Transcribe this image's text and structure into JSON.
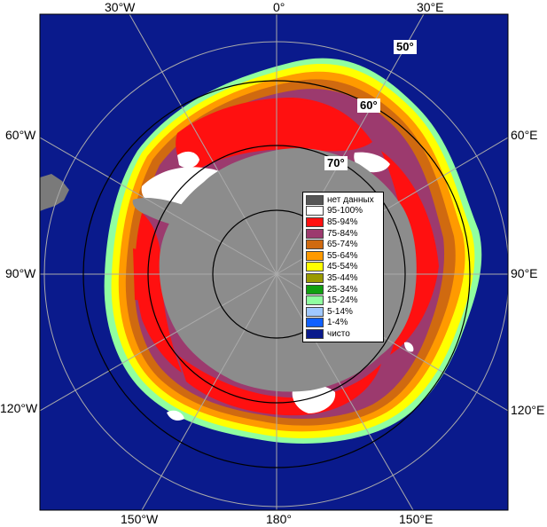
{
  "map": {
    "longitude_labels": {
      "lon_30w": "30°W",
      "lon_0": "0°",
      "lon_30e": "30°E",
      "lon_60w": "60°W",
      "lon_60e": "60°E",
      "lon_90w": "90°W",
      "lon_90e": "90°E",
      "lon_120w": "120°W",
      "lon_120e": "120°E",
      "lon_150w": "150°W",
      "lon_180": "180°",
      "lon_150e": "150°E"
    },
    "latitude_labels": {
      "lat_50": "50°",
      "lat_60": "60°",
      "lat_70": "70°"
    },
    "colors": {
      "ocean": "#0a1a8c",
      "land": "#8c8c8c",
      "grid": "#aaaaaa",
      "circle": "#000000"
    }
  },
  "legend": {
    "items": [
      {
        "label": "нет данных",
        "color": "#555555"
      },
      {
        "label": "95-100%",
        "color": "#ffffff"
      },
      {
        "label": "85-94%",
        "color": "#ff1010"
      },
      {
        "label": "75-84%",
        "color": "#9c3a6e"
      },
      {
        "label": "65-74%",
        "color": "#d06a10"
      },
      {
        "label": "55-64%",
        "color": "#ff9a00"
      },
      {
        "label": "45-54%",
        "color": "#ffff00"
      },
      {
        "label": "35-44%",
        "color": "#9a9a00"
      },
      {
        "label": "25-34%",
        "color": "#10a010"
      },
      {
        "label": "15-24%",
        "color": "#90ffa0"
      },
      {
        "label": "5-14%",
        "color": "#a0c8ff"
      },
      {
        "label": "1-4%",
        "color": "#1060ff"
      },
      {
        "label": "чисто",
        "color": "#0a1a8c"
      }
    ]
  }
}
